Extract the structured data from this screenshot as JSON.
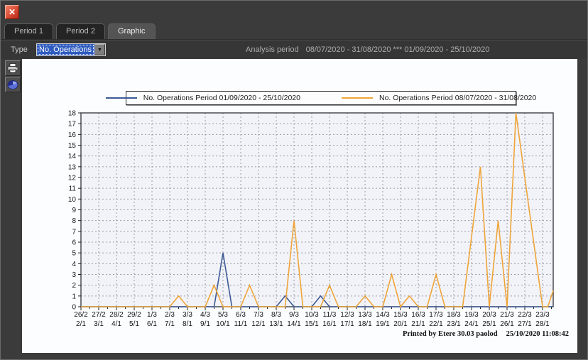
{
  "window": {
    "close_glyph": "✕",
    "dropdown_arrow_glyph": "▼"
  },
  "tabs": [
    {
      "label": "Period 1",
      "selected": false
    },
    {
      "label": "Period 2",
      "selected": false
    },
    {
      "label": "Graphic",
      "selected": true
    }
  ],
  "toolbar": {
    "type_label": "Type",
    "type_value": "No. Operations",
    "analysis_label": "Analysis period",
    "analysis_value": "08/07/2020 - 31/08/2020 *** 01/09/2020 - 25/10/2020"
  },
  "side_buttons": [
    {
      "icon": "printer-icon"
    },
    {
      "icon": "pie-chart-icon"
    }
  ],
  "footer": {
    "printed_by": "Printed by Etere 30.03 paolod",
    "timestamp": "25/10/2020 11:08:42"
  },
  "chart_data": {
    "type": "line",
    "title": "",
    "xlabel": "",
    "ylabel": "",
    "ylim": [
      0,
      18
    ],
    "y_tick_step": 1,
    "grid": true,
    "legend_position": "top-center",
    "x_labels_row1": [
      "26/2",
      "27/2",
      "28/2",
      "29/2",
      "1/3",
      "2/3",
      "3/3",
      "4/3",
      "5/3",
      "6/3",
      "7/3",
      "8/3",
      "9/3",
      "10/3",
      "11/3",
      "12/3",
      "13/3",
      "14/3",
      "15/3",
      "16/3",
      "17/3",
      "18/3",
      "19/3",
      "20/3",
      "21/3",
      "22/3",
      "23/3"
    ],
    "x_labels_row2": [
      "2/1",
      "3/1",
      "4/1",
      "5/1",
      "6/1",
      "7/1",
      "8/1",
      "9/1",
      "10/1",
      "11/1",
      "12/1",
      "13/1",
      "14/1",
      "15/1",
      "16/1",
      "17/1",
      "18/1",
      "19/1",
      "20/1",
      "21/1",
      "22/1",
      "23/1",
      "24/1",
      "25/1",
      "26/1",
      "27/1",
      "28/1"
    ],
    "series": [
      {
        "name": "No. Operations Period 01/09/2020 - 25/10/2020",
        "color": "#3d5a96",
        "points": [
          [
            0,
            0
          ],
          [
            7.5,
            0
          ],
          [
            8,
            5
          ],
          [
            8.5,
            0
          ],
          [
            11,
            0
          ],
          [
            11.5,
            1
          ],
          [
            12,
            0
          ],
          [
            13,
            0
          ],
          [
            13.5,
            1
          ],
          [
            14,
            0
          ],
          [
            26.6,
            0
          ]
        ]
      },
      {
        "name": "No. Operations Period 08/07/2020 - 31/08/2020",
        "color": "#efa53a",
        "points": [
          [
            0,
            0
          ],
          [
            5,
            0
          ],
          [
            5.5,
            1
          ],
          [
            6,
            0
          ],
          [
            7,
            0
          ],
          [
            7.5,
            2
          ],
          [
            8,
            0
          ],
          [
            9,
            0
          ],
          [
            9.5,
            2
          ],
          [
            10,
            0
          ],
          [
            11.5,
            0
          ],
          [
            12,
            8
          ],
          [
            12.5,
            0
          ],
          [
            13.5,
            0
          ],
          [
            14,
            2
          ],
          [
            14.5,
            0
          ],
          [
            15.5,
            0
          ],
          [
            16,
            1
          ],
          [
            16.5,
            0
          ],
          [
            17,
            0
          ],
          [
            17.5,
            3
          ],
          [
            18,
            0
          ],
          [
            18.5,
            1
          ],
          [
            19,
            0
          ],
          [
            19.5,
            0
          ],
          [
            20,
            3
          ],
          [
            20.5,
            0
          ],
          [
            21.5,
            0
          ],
          [
            22.5,
            13
          ],
          [
            23,
            0
          ],
          [
            23.5,
            8
          ],
          [
            24,
            0
          ],
          [
            24.5,
            18
          ],
          [
            26,
            0
          ],
          [
            26.3,
            0
          ],
          [
            26.6,
            1.5
          ]
        ]
      }
    ]
  }
}
